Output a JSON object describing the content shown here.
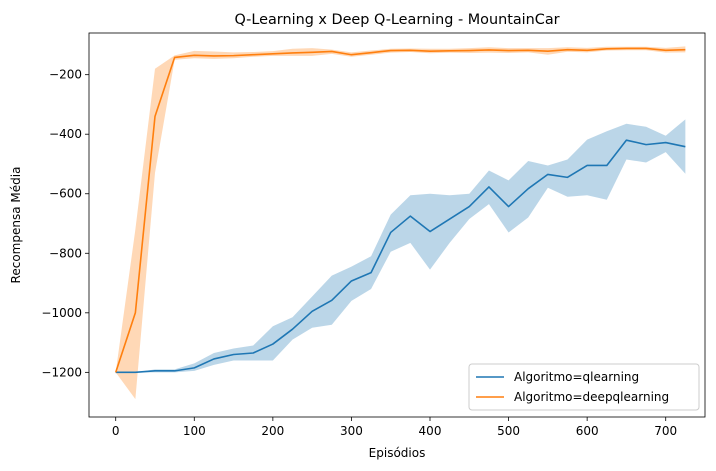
{
  "chart_data": {
    "type": "line",
    "title": "Q-Learning x Deep Q-Learning - MountainCar",
    "xlabel": "Episódios",
    "ylabel": "Recompensa Média",
    "xlim": [
      -34,
      750
    ],
    "ylim": [
      -1350,
      -60
    ],
    "xticks": [
      0,
      100,
      200,
      300,
      400,
      500,
      600,
      700
    ],
    "xtick_labels": [
      "0",
      "100",
      "200",
      "300",
      "400",
      "500",
      "600",
      "700"
    ],
    "yticks": [
      -200,
      -400,
      -600,
      -800,
      -1000,
      -1200
    ],
    "ytick_labels": [
      "−200",
      "−400",
      "−600",
      "−800",
      "−1000",
      "−1200"
    ],
    "grid": false,
    "legend_position": "lower-right",
    "x": [
      0,
      25,
      50,
      75,
      100,
      125,
      150,
      175,
      200,
      225,
      250,
      275,
      300,
      325,
      350,
      375,
      400,
      425,
      450,
      475,
      500,
      525,
      550,
      575,
      600,
      625,
      650,
      675,
      700,
      725
    ],
    "series": [
      {
        "name": "Algoritmo=qlearning",
        "color": "#1f77b4",
        "band_color": "#1f77b4",
        "values": [
          -1200,
          -1200,
          -1195,
          -1195,
          -1185,
          -1155,
          -1140,
          -1135,
          -1105,
          -1055,
          -995,
          -958,
          -893,
          -865,
          -730,
          -675,
          -727,
          -685,
          -643,
          -577,
          -643,
          -583,
          -535,
          -545,
          -505,
          -505,
          -420,
          -435,
          -428,
          -442
        ],
        "lower": [
          -1200,
          -1200,
          -1200,
          -1200,
          -1195,
          -1175,
          -1160,
          -1160,
          -1160,
          -1090,
          -1050,
          -1040,
          -960,
          -920,
          -795,
          -765,
          -855,
          -765,
          -685,
          -635,
          -730,
          -680,
          -580,
          -610,
          -605,
          -620,
          -485,
          -495,
          -460,
          -533
        ],
        "upper": [
          -1200,
          -1200,
          -1190,
          -1190,
          -1170,
          -1135,
          -1120,
          -1110,
          -1045,
          -1015,
          -945,
          -875,
          -845,
          -810,
          -670,
          -605,
          -600,
          -605,
          -600,
          -522,
          -555,
          -490,
          -505,
          -485,
          -418,
          -390,
          -365,
          -375,
          -405,
          -350
        ]
      },
      {
        "name": "Algoritmo=deepqlearning",
        "color": "#ff7f0e",
        "band_color": "#ff7f0e",
        "values": [
          -1200,
          -1000,
          -340,
          -142,
          -135,
          -137,
          -136,
          -133,
          -130,
          -127,
          -125,
          -122,
          -133,
          -126,
          -119,
          -118,
          -121,
          -120,
          -119,
          -117,
          -119,
          -118,
          -121,
          -116,
          -118,
          -113,
          -112,
          -112,
          -118,
          -116
        ],
        "lower": [
          -1200,
          -1290,
          -530,
          -150,
          -145,
          -147,
          -145,
          -140,
          -137,
          -137,
          -137,
          -130,
          -140,
          -133,
          -126,
          -124,
          -128,
          -126,
          -127,
          -126,
          -127,
          -125,
          -133,
          -123,
          -125,
          -119,
          -118,
          -118,
          -126,
          -125
        ],
        "upper": [
          -1200,
          -720,
          -180,
          -135,
          -120,
          -122,
          -125,
          -124,
          -121,
          -113,
          -111,
          -116,
          -125,
          -119,
          -113,
          -112,
          -113,
          -113,
          -111,
          -108,
          -111,
          -111,
          -111,
          -108,
          -110,
          -106,
          -106,
          -106,
          -110,
          -105
        ]
      }
    ]
  }
}
